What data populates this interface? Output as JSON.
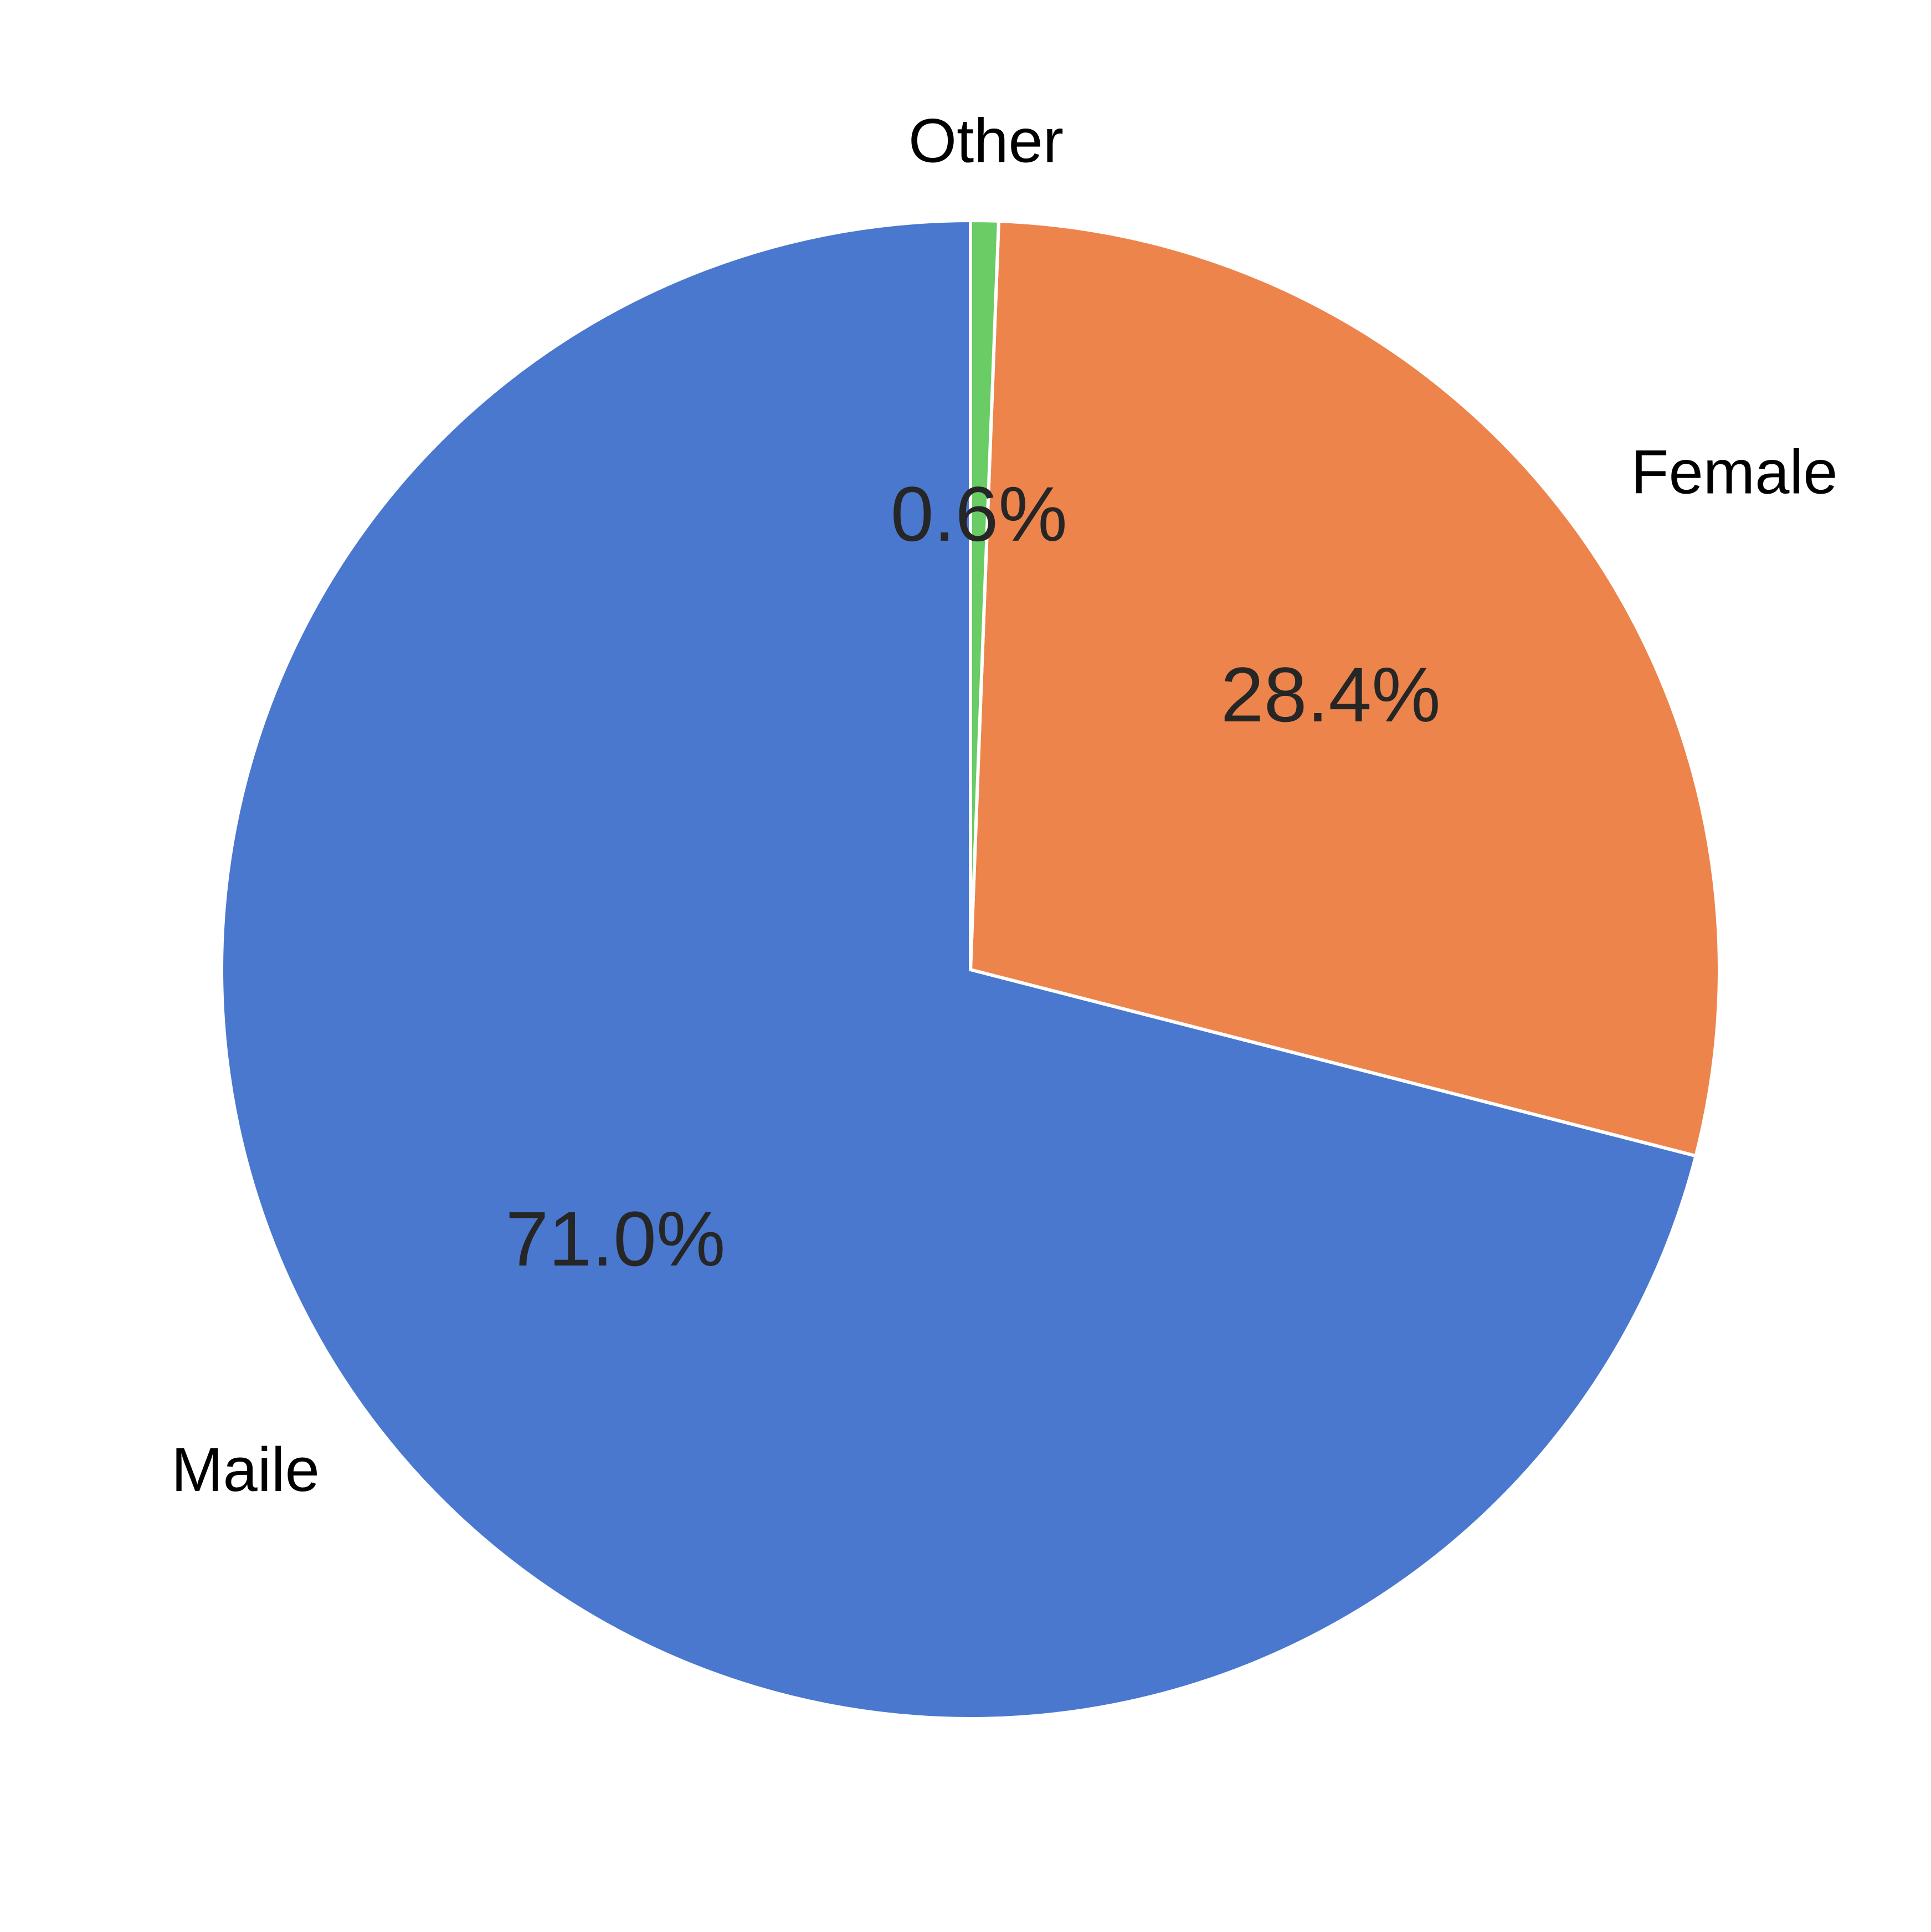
{
  "chart_data": {
    "type": "pie",
    "categories": [
      "Maile",
      "Female",
      "Other"
    ],
    "values": [
      71.0,
      28.4,
      0.6
    ],
    "value_labels": [
      "71.0%",
      "28.4%",
      "0.6%"
    ],
    "colors": [
      "#4a78cf",
      "#ed844c",
      "#6acc64"
    ],
    "start_angle": 90,
    "direction": "counterclockwise"
  }
}
